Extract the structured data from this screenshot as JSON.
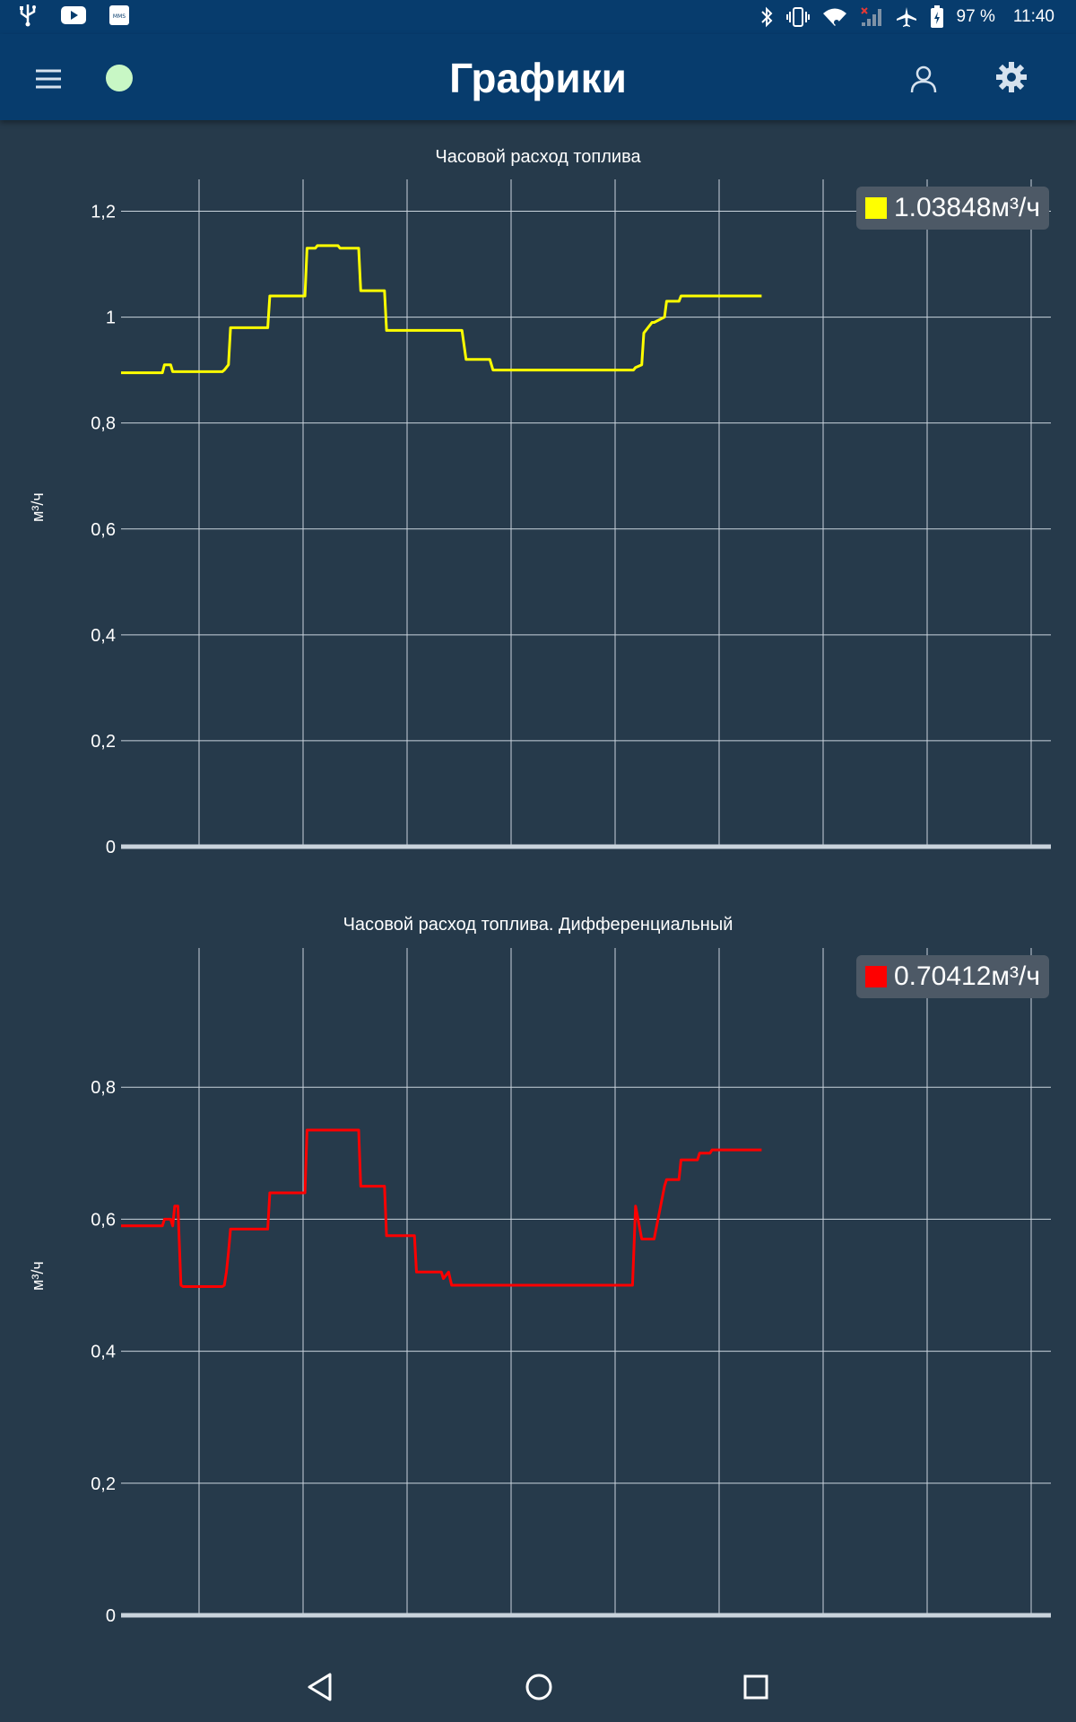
{
  "statusbar": {
    "battery": "97 %",
    "time": "11:40",
    "icons": [
      "usb-icon",
      "youtube-icon",
      "mms-icon",
      "bluetooth-icon",
      "vibrate-icon",
      "wifi-icon",
      "signal-icon",
      "airplane-icon",
      "battery-icon"
    ]
  },
  "appbar": {
    "title": "Графики",
    "status_color": "#c8f7c5"
  },
  "charts": [
    {
      "title": "Часовой расход топлива",
      "ylabel": "м³/ч",
      "legend": "1.03848м³/ч",
      "color": "#ffff00"
    },
    {
      "title": "Часовой расход топлива. Дифференциальный",
      "ylabel": "м³/ч",
      "legend": "0.70412м³/ч",
      "color": "#ff0000"
    }
  ],
  "chart_data": [
    {
      "type": "line",
      "title": "Часовой расход топлива",
      "ylabel": "м³/ч",
      "ylim": [
        0,
        1.25
      ],
      "yticks": [
        "0",
        "0,2",
        "0,4",
        "0,6",
        "0,8",
        "1",
        "1,2"
      ],
      "ytick_values": [
        0,
        0.2,
        0.4,
        0.6,
        0.8,
        1.0,
        1.2
      ],
      "xlim": [
        0,
        9
      ],
      "grid": true,
      "legend_position": "top-right",
      "series": [
        {
          "name": "1.03848м³/ч",
          "color": "#ffff00",
          "x": [
            0.0,
            0.4,
            0.42,
            0.48,
            0.5,
            0.98,
            1.0,
            1.04,
            1.06,
            1.2,
            1.22,
            1.42,
            1.44,
            1.62,
            1.64,
            1.78,
            1.8,
            1.88,
            1.9,
            2.1,
            2.12,
            2.3,
            2.32,
            2.36,
            2.38,
            2.55,
            2.57,
            2.74,
            2.76,
            3.3,
            3.34,
            3.57,
            3.6,
            4.96,
            4.98,
            5.04,
            5.06,
            5.14,
            5.16,
            5.26,
            5.28,
            5.4,
            5.42,
            5.58,
            5.6,
            5.7,
            5.72,
            5.74,
            6.2
          ],
          "y": [
            0.895,
            0.895,
            0.91,
            0.91,
            0.897,
            0.897,
            0.9,
            0.91,
            0.98,
            0.98,
            0.98,
            0.98,
            1.04,
            1.04,
            1.04,
            1.04,
            1.13,
            1.13,
            1.135,
            1.135,
            1.13,
            1.13,
            1.05,
            1.05,
            1.05,
            1.05,
            0.975,
            0.975,
            0.975,
            0.975,
            0.92,
            0.92,
            0.9,
            0.9,
            0.905,
            0.91,
            0.97,
            0.99,
            0.99,
            1.0,
            1.03,
            1.03,
            1.04,
            1.04,
            1.04,
            1.04,
            1.04,
            1.04,
            1.04
          ]
        }
      ]
    },
    {
      "type": "line",
      "title": "Часовой расход топлива. Дифференциальный",
      "ylabel": "м³/ч",
      "ylim": [
        0,
        1.0
      ],
      "yticks": [
        "0",
        "0,2",
        "0,4",
        "0,6",
        "0,8"
      ],
      "ytick_values": [
        0,
        0.2,
        0.4,
        0.6,
        0.8
      ],
      "xlim": [
        0,
        9
      ],
      "grid": true,
      "legend_position": "top-right",
      "series": [
        {
          "name": "0.70412м³/ч",
          "color": "#ff0000",
          "x": [
            0.0,
            0.4,
            0.42,
            0.48,
            0.5,
            0.52,
            0.55,
            0.58,
            0.6,
            0.98,
            1.0,
            1.02,
            1.04,
            1.06,
            1.2,
            1.22,
            1.42,
            1.44,
            1.62,
            1.64,
            1.78,
            1.8,
            1.88,
            1.9,
            2.1,
            2.12,
            2.3,
            2.32,
            2.36,
            2.38,
            2.55,
            2.57,
            2.74,
            2.76,
            2.84,
            2.86,
            3.08,
            3.1,
            3.12,
            3.17,
            3.2,
            3.4,
            3.42,
            3.46,
            3.48,
            4.95,
            4.98,
            5.04,
            5.06,
            5.14,
            5.16,
            5.26,
            5.28,
            5.4,
            5.42,
            5.58,
            5.6,
            5.7,
            5.72,
            5.74,
            6.2
          ],
          "y": [
            0.59,
            0.59,
            0.6,
            0.6,
            0.59,
            0.62,
            0.62,
            0.5,
            0.498,
            0.498,
            0.5,
            0.52,
            0.55,
            0.585,
            0.585,
            0.585,
            0.585,
            0.64,
            0.64,
            0.64,
            0.64,
            0.735,
            0.735,
            0.735,
            0.735,
            0.735,
            0.735,
            0.65,
            0.65,
            0.65,
            0.65,
            0.575,
            0.575,
            0.575,
            0.575,
            0.52,
            0.52,
            0.52,
            0.51,
            0.52,
            0.5,
            0.5,
            0.5,
            0.5,
            0.5,
            0.5,
            0.62,
            0.57,
            0.57,
            0.57,
            0.57,
            0.65,
            0.66,
            0.66,
            0.69,
            0.69,
            0.7,
            0.7,
            0.705,
            0.705,
            0.705
          ]
        }
      ]
    }
  ]
}
